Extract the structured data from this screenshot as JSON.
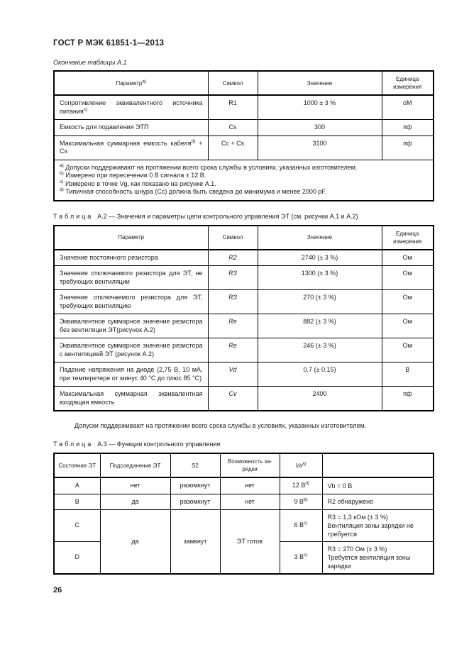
{
  "page": {
    "title": "ГОСТ Р МЭК 61851-1—2013",
    "number": "26"
  },
  "table_a1": {
    "caption": "Окончание таблицы А.1",
    "columns": {
      "param": "Параметр",
      "param_sup": "а)",
      "symbol": "Символ",
      "value": "Значение",
      "unit": "Единица измерения"
    },
    "rows": [
      {
        "param": "Сопротивление эквивалентного источника питания",
        "param_sup": "с)",
        "param_tail": "",
        "symbol": "R1",
        "value": "1000 ± 3 %",
        "unit": "оМ"
      },
      {
        "param": "Емкость для подавления ЭТП",
        "param_sup": "",
        "param_tail": "",
        "symbol": "Cs",
        "value": "300",
        "unit": "пф"
      },
      {
        "param": "Максимальная суммарная емкость кабеля",
        "param_sup": "d)",
        "param_tail": " + Cs",
        "symbol": "Cc + Cs",
        "value": "3100",
        "unit": "пф"
      }
    ],
    "footnotes": [
      {
        "sup": "а)",
        "text": "Допуски поддерживают на протяжении всего срока службы в условиях, указанных изготовителем."
      },
      {
        "sup": "b)",
        "text": "Измерено при пересечении 0 В сигнала ± 12 В."
      },
      {
        "sup": "с)",
        "text": "Измерено в точке Vg, как показано на рисунке А.1."
      },
      {
        "sup": "d)",
        "text": "Типичная способность шнура (Сс) должна быть сведена до минимума и менее 2000 pF."
      }
    ]
  },
  "table_a2": {
    "caption_label": "Таблица",
    "caption_text": "А.2 — Значения и параметры цепи контрольного управления ЭТ (см. рисунки А.1 и А.2)",
    "columns": {
      "param": "Параметр",
      "symbol": "Символ",
      "value": "Значение",
      "unit": "Единица измерения"
    },
    "rows": [
      {
        "param": "Значение постоянного резистора",
        "symbol": "R2",
        "value": "2740 (± 3 %)",
        "unit": "Ом"
      },
      {
        "param": "Значение отключаемого резистора для ЭТ, не требующих вентиляции",
        "symbol": "R3",
        "value": "1300 (± 3 %)",
        "unit": "Ом"
      },
      {
        "param": "Значение отключаемого резистора для ЭТ, требующих вентиляцию",
        "symbol": "R3",
        "value": "270 (± 3 %)",
        "unit": "Ом"
      },
      {
        "param": "Эквивалентное суммарное значение ре­зистора без вентиляции ЭТ(рисунок А.2)",
        "symbol": "Re",
        "value": "882 (± 3 %)",
        "unit": "Ом"
      },
      {
        "param": "Эквивалентное суммарное значение ре­зистора с вентиляцией ЭТ (рисунок А.2)",
        "symbol": "Re",
        "value": "246 (± 3 %)",
        "unit": "Ом"
      },
      {
        "param": "Падение напряжения на диоде (2,75 В, 10 мА, при темперетере от минус 40 °С до плюс 85 °С)",
        "symbol": "Vd",
        "value": "0,7 (± 0,15)",
        "unit": "В"
      },
      {
        "param": "Максимальная суммарная эквивалентная входящая емкость",
        "symbol": "Cv",
        "value": "2400",
        "unit": "пф"
      }
    ],
    "note": "Допуски поддерживают на протяжении всего срока службы в условиях, указанных изготовителем."
  },
  "table_a3": {
    "caption_label": "Таблица",
    "caption_text": "А.3 — Функции контрольного управления",
    "columns": {
      "state": "Состояние ЭТ",
      "connect": "Подсоединение ЭТ",
      "s2": "S2",
      "charge_line1": "Возможность за-",
      "charge_line2": "рядки",
      "va": "Va",
      "va_sup": "а)",
      "extra": ""
    },
    "merged": {
      "connect": "да",
      "s2": "замкнут",
      "charge": "ЭТ готов"
    },
    "rows": [
      {
        "state": "A",
        "connect": "нет",
        "s2": "разомкнут",
        "charge": "нет",
        "va": "12 В",
        "va_sup": "d)",
        "note1": "Vb = 0 В",
        "note2": ""
      },
      {
        "state": "B",
        "connect": "да",
        "s2": "разомкнут",
        "charge": "нет",
        "va": "9 В",
        "va_sup": "b)",
        "note1": "R2 обнаружено",
        "note2": ""
      },
      {
        "state": "C",
        "va": "6 В",
        "va_sup": "с)",
        "note1": "R3 = 1,3 кОм (± 3 %)",
        "note2": "Вентиляция зоны зарядки не требуется"
      },
      {
        "state": "D",
        "va": "3 В",
        "va_sup": "с)",
        "note1": "R3 = 270 Ом (± 3 %)",
        "note2": "Требуется вентиляция зоны зарядки"
      }
    ]
  }
}
